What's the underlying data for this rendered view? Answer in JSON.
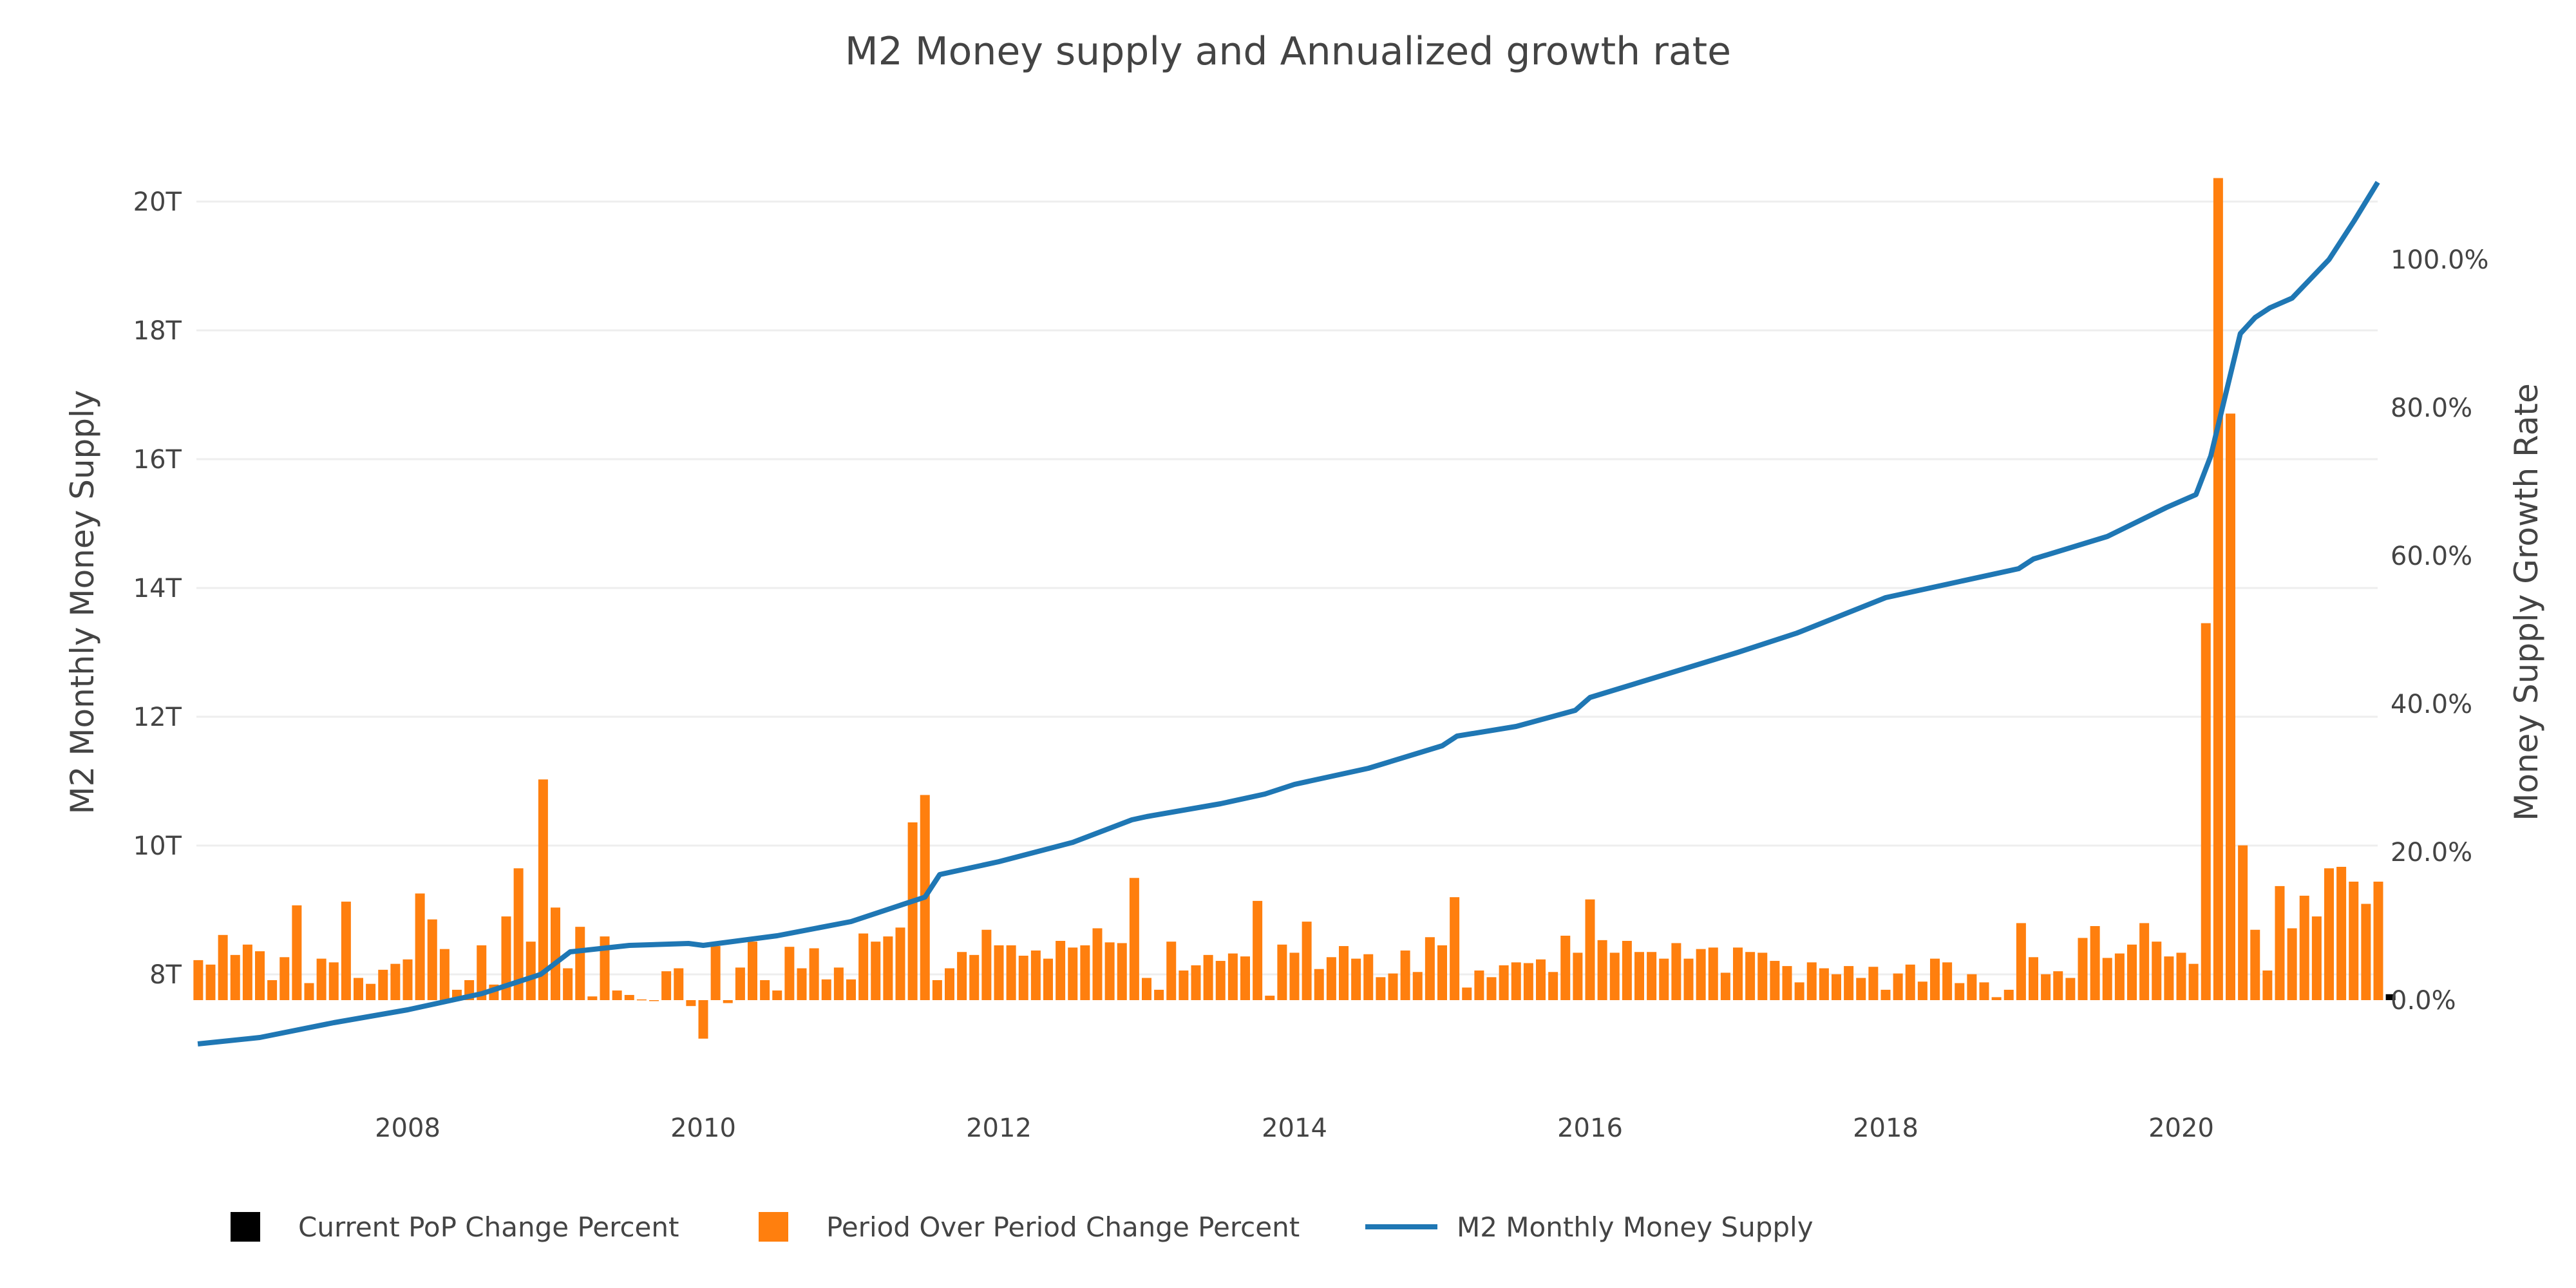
{
  "chart_data": {
    "type": "bar+line",
    "title": "M2 Money supply and Annualized growth rate",
    "xlabel": "",
    "ylabel_left": "M2 Monthly Money Supply",
    "ylabel_right": "Money Supply Growth Rate",
    "x_ticks": [
      "2008",
      "2010",
      "2012",
      "2014",
      "2016",
      "2018",
      "2020"
    ],
    "y_left_ticks": [
      "8T",
      "10T",
      "12T",
      "14T",
      "16T",
      "18T",
      "20T"
    ],
    "y_left_tick_values": [
      8,
      10,
      12,
      14,
      16,
      18,
      20
    ],
    "y_right_ticks": [
      "0.0%",
      "20.0%",
      "40.0%",
      "60.0%",
      "80.0%",
      "100.0%"
    ],
    "y_right_tick_values": [
      0,
      20,
      40,
      60,
      80,
      100
    ],
    "grid": true,
    "legend_position": "bottom",
    "legend": [
      "Current PoP Change Percent",
      "Period Over Period Change Percent",
      "M2 Monthly Money Supply"
    ],
    "colors": {
      "bars": "#ff7f0e",
      "line": "#1f77b4",
      "current": "#000000",
      "grid": "#eeeeee"
    },
    "bars_start_month": "2006-08",
    "period_over_period_change_percent": [
      5.4,
      4.8,
      8.8,
      6.1,
      7.5,
      6.6,
      2.7,
      5.8,
      12.8,
      2.3,
      5.6,
      5.1,
      13.3,
      3.0,
      2.2,
      4.1,
      4.9,
      5.5,
      14.4,
      10.9,
      6.9,
      1.4,
      2.7,
      7.4,
      2.1,
      11.3,
      17.8,
      7.9,
      29.8,
      12.5,
      4.3,
      9.9,
      0.5,
      8.6,
      1.3,
      0.7,
      0.1,
      -0.1,
      3.9,
      4.3,
      -0.8,
      -5.2,
      7.3,
      -0.4,
      4.4,
      7.9,
      2.7,
      1.3,
      7.2,
      4.3,
      7.0,
      2.8,
      4.4,
      2.8,
      9.0,
      7.9,
      8.6,
      9.8,
      24.0,
      27.7,
      2.7,
      4.3,
      6.5,
      6.1,
      9.5,
      7.4,
      7.4,
      6.0,
      6.7,
      5.6,
      8.0,
      7.1,
      7.4,
      9.7,
      7.8,
      7.7,
      16.5,
      3.0,
      1.4,
      7.9,
      4.0,
      4.7,
      6.1,
      5.3,
      6.3,
      5.9,
      13.4,
      0.6,
      7.5,
      6.4,
      10.6,
      4.2,
      5.8,
      7.3,
      5.6,
      6.2,
      3.1,
      3.6,
      6.7,
      3.8,
      8.5,
      7.4,
      13.9,
      1.7,
      4.0,
      3.1,
      4.7,
      5.1,
      5.0,
      5.5,
      3.8,
      8.7,
      6.4,
      13.6,
      8.1,
      6.4,
      8.0,
      6.5,
      6.5,
      5.6,
      7.7,
      5.6,
      6.9,
      7.1,
      3.7,
      7.1,
      6.5,
      6.4,
      5.3,
      4.6,
      2.4,
      5.1,
      4.3,
      3.5,
      4.6,
      3.0,
      4.5,
      1.4,
      3.6,
      4.8,
      2.5,
      5.6,
      5.1,
      2.3,
      3.5,
      2.4,
      0.4,
      1.4,
      10.4,
      5.8,
      3.5,
      3.9,
      3.0,
      8.4,
      10.0,
      5.7,
      6.3,
      7.5,
      10.4,
      7.9,
      5.9,
      6.4,
      4.9,
      50.9,
      111.0,
      79.2,
      20.9,
      9.5,
      4.0,
      15.4,
      9.7,
      14.1,
      11.3,
      17.8,
      18.0,
      16.0,
      13.0,
      16.0
    ],
    "current_pop_change_percent": {
      "month": "2021-06",
      "value": 0.8
    },
    "m2_monthly_money_supply_trillions": [
      {
        "t": 2006.58,
        "v": 6.92
      },
      {
        "t": 2007.0,
        "v": 7.02
      },
      {
        "t": 2007.5,
        "v": 7.25
      },
      {
        "t": 2008.0,
        "v": 7.45
      },
      {
        "t": 2008.5,
        "v": 7.7
      },
      {
        "t": 2008.9,
        "v": 8.0
      },
      {
        "t": 2009.1,
        "v": 8.35
      },
      {
        "t": 2009.5,
        "v": 8.45
      },
      {
        "t": 2009.9,
        "v": 8.48
      },
      {
        "t": 2010.0,
        "v": 8.45
      },
      {
        "t": 2010.5,
        "v": 8.6
      },
      {
        "t": 2011.0,
        "v": 8.82
      },
      {
        "t": 2011.5,
        "v": 9.2
      },
      {
        "t": 2011.6,
        "v": 9.55
      },
      {
        "t": 2012.0,
        "v": 9.75
      },
      {
        "t": 2012.5,
        "v": 10.05
      },
      {
        "t": 2012.9,
        "v": 10.4
      },
      {
        "t": 2013.0,
        "v": 10.45
      },
      {
        "t": 2013.5,
        "v": 10.65
      },
      {
        "t": 2013.8,
        "v": 10.8
      },
      {
        "t": 2014.0,
        "v": 10.95
      },
      {
        "t": 2014.5,
        "v": 11.2
      },
      {
        "t": 2015.0,
        "v": 11.55
      },
      {
        "t": 2015.1,
        "v": 11.7
      },
      {
        "t": 2015.5,
        "v": 11.85
      },
      {
        "t": 2015.9,
        "v": 12.1
      },
      {
        "t": 2016.0,
        "v": 12.3
      },
      {
        "t": 2016.5,
        "v": 12.65
      },
      {
        "t": 2017.0,
        "v": 13.0
      },
      {
        "t": 2017.4,
        "v": 13.3
      },
      {
        "t": 2018.0,
        "v": 13.85
      },
      {
        "t": 2018.5,
        "v": 14.1
      },
      {
        "t": 2018.9,
        "v": 14.3
      },
      {
        "t": 2019.0,
        "v": 14.45
      },
      {
        "t": 2019.5,
        "v": 14.8
      },
      {
        "t": 2019.9,
        "v": 15.25
      },
      {
        "t": 2020.1,
        "v": 15.45
      },
      {
        "t": 2020.2,
        "v": 16.05
      },
      {
        "t": 2020.3,
        "v": 17.0
      },
      {
        "t": 2020.4,
        "v": 17.95
      },
      {
        "t": 2020.5,
        "v": 18.2
      },
      {
        "t": 2020.6,
        "v": 18.35
      },
      {
        "t": 2020.75,
        "v": 18.5
      },
      {
        "t": 2021.0,
        "v": 19.1
      },
      {
        "t": 2021.17,
        "v": 19.7
      },
      {
        "t": 2021.33,
        "v": 20.3
      }
    ]
  }
}
